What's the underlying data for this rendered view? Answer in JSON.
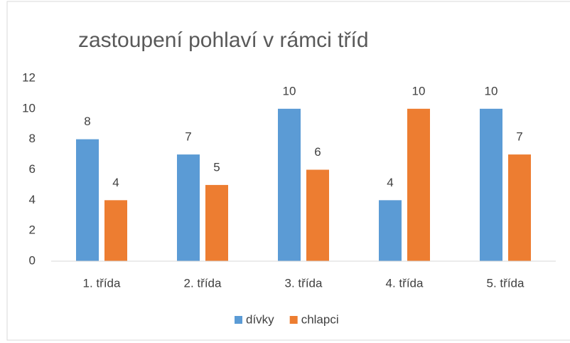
{
  "chart_data": {
    "type": "bar",
    "title": "zastoupení pohlaví v rámci tříd",
    "categories": [
      "1. třída",
      "2. třída",
      "3. třída",
      "4. třída",
      "5. třída"
    ],
    "series": [
      {
        "name": "dívky",
        "color": "#5b9bd5",
        "values": [
          8,
          7,
          10,
          4,
          10
        ]
      },
      {
        "name": "chlapci",
        "color": "#ed7d31",
        "values": [
          4,
          5,
          6,
          10,
          7
        ]
      }
    ],
    "ylim": [
      0,
      12
    ],
    "yticks": [
      0,
      2,
      4,
      6,
      8,
      10,
      12
    ],
    "grid": false,
    "legend": "bottom",
    "data_labels": true
  }
}
